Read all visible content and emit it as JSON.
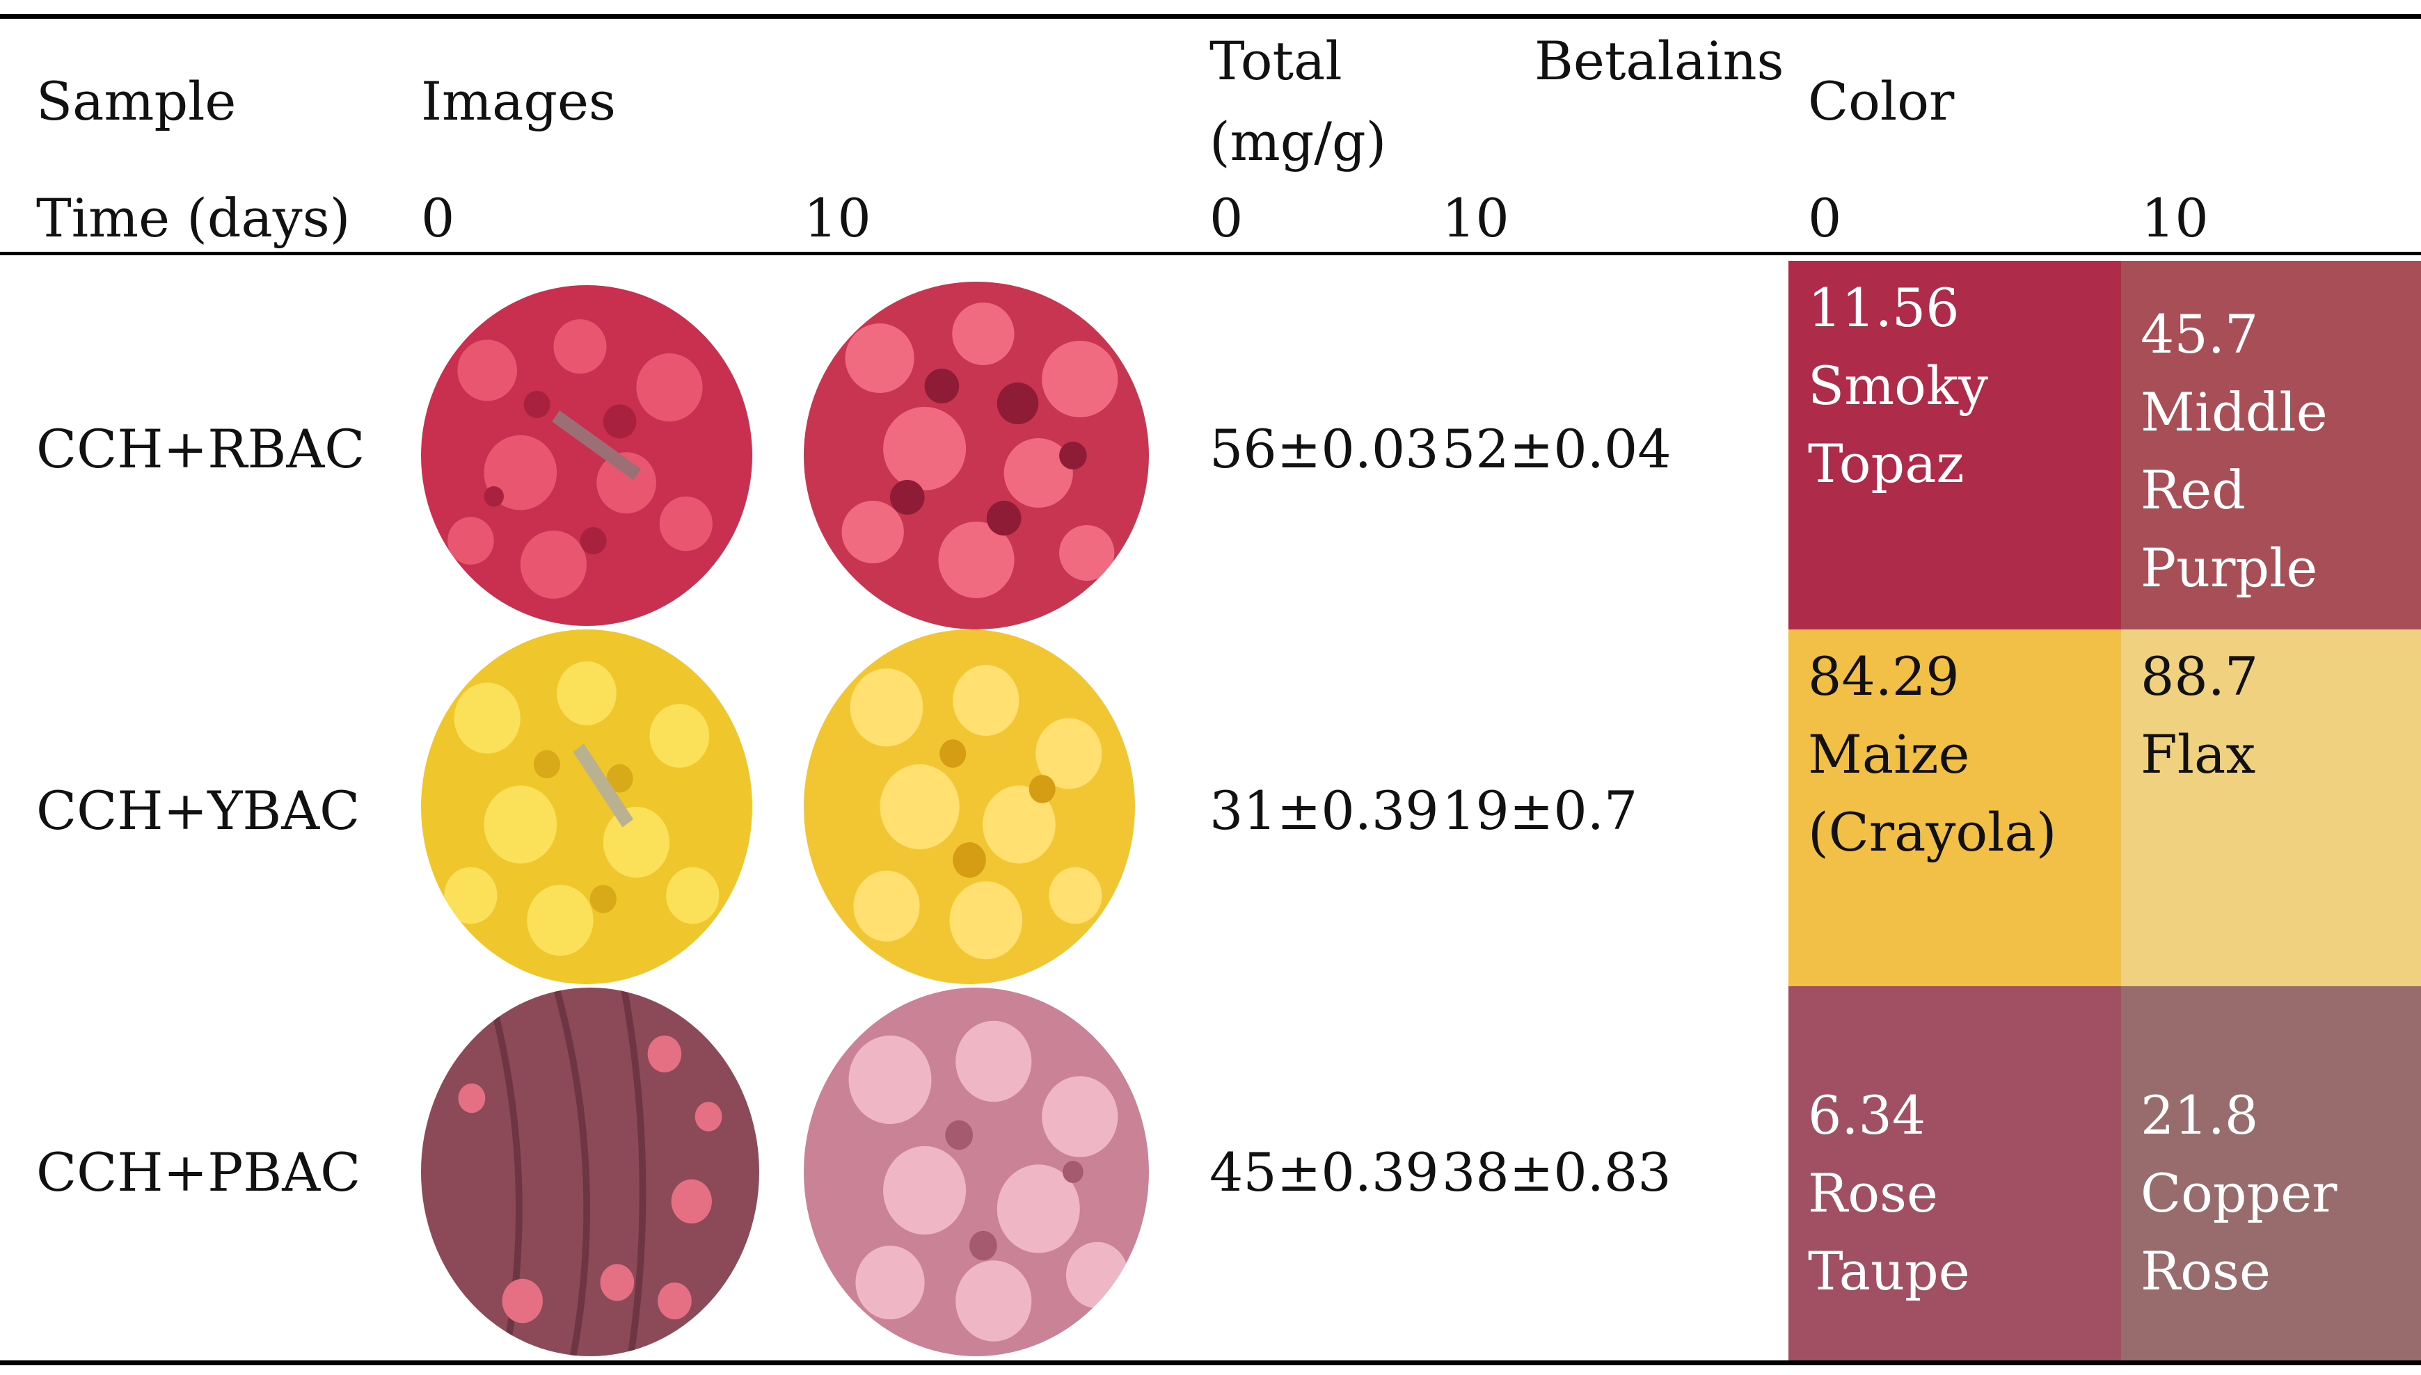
{
  "header": {
    "sample": "Sample",
    "images": "Images",
    "total_line1": "Total",
    "betalains": "Betalains",
    "total_line2": "(mg/g)",
    "color": "Color",
    "time_label": "Time (days)",
    "img_t0": "0",
    "img_t10": "10",
    "bet_t0": "0",
    "bet_t10": "10",
    "col_t0": "0",
    "col_t10": "10"
  },
  "rows": [
    {
      "sample": "CCH+RBAC",
      "bet0": "56±0.03",
      "bet10": "52±0.04",
      "color0": {
        "value": "11.56",
        "name": [
          "Smoky",
          "Topaz"
        ],
        "bg": "#AE2C4A"
      },
      "color10": {
        "value": "45.7",
        "name": [
          "Middle",
          "Red",
          "Purple"
        ],
        "bg": "#A84E56"
      },
      "img0_tone": "#d63a5c",
      "img10_tone": "#e0506a"
    },
    {
      "sample": "CCH+YBAC",
      "bet0": "31±0.39",
      "bet10": "19±0.7",
      "color0": {
        "value": "84.29",
        "name": [
          "Maize",
          "(Crayola)"
        ],
        "bg": "#F3C047"
      },
      "color10": {
        "value": "88.7",
        "name": [
          "Flax"
        ],
        "bg": "#EFD17F"
      },
      "img0_tone": "#f6d43a",
      "img10_tone": "#f9d23e"
    },
    {
      "sample": "CCH+PBAC",
      "bet0": "45±0.39",
      "bet10": "38±0.83",
      "color0": {
        "value": "6.34",
        "name": [
          "Rose",
          "Taupe"
        ],
        "bg": "#A05062"
      },
      "color10": {
        "value": "21.8",
        "name": [
          "Copper",
          "Rose"
        ],
        "bg": "#986B6D"
      },
      "img0_tone": "#a85a6a",
      "img10_tone": "#d99aae"
    }
  ]
}
